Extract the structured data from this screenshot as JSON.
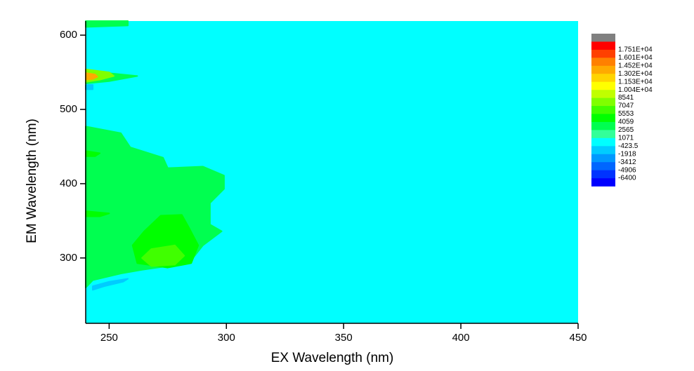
{
  "chart_data": {
    "type": "contour",
    "x_label": "EX Wavelength (nm)",
    "y_label": "EM Wavelength (nm)",
    "xlim": [
      240,
      450
    ],
    "xticks": [
      250,
      300,
      350,
      400,
      450
    ],
    "ylim": [
      212,
      619
    ],
    "yticks": [
      300,
      400,
      500,
      600
    ],
    "levels": [
      {
        "value": 17510,
        "label": "1.751E+04"
      },
      {
        "value": 16010,
        "label": "1.601E+04"
      },
      {
        "value": 14520,
        "label": "1.452E+04"
      },
      {
        "value": 13020,
        "label": "1.302E+04"
      },
      {
        "value": 11530,
        "label": "1.153E+04"
      },
      {
        "value": 10040,
        "label": "1.004E+04"
      },
      8541,
      7047,
      5553,
      4059,
      2565,
      1071,
      -423.5,
      -1918,
      -3412,
      -4906,
      -6400
    ],
    "colors": [
      "#808080",
      "#ff0000",
      "#ff4000",
      "#ff8000",
      "#ffaa00",
      "#ffd400",
      "#ffff00",
      "#c0ff00",
      "#80ff00",
      "#40ff00",
      "#00ff00",
      "#00ff50",
      "#33ff99",
      "#00ffff",
      "#00ccff",
      "#0099ff",
      "#0066ff",
      "#0033ff",
      "#0000ff"
    ],
    "background": 500,
    "regions": [
      {
        "z": 3000,
        "ex": [
          240,
          255,
          259,
          273,
          275,
          290,
          299,
          299,
          293,
          293,
          298,
          290,
          284,
          275,
          264,
          255,
          243,
          240
        ],
        "em": [
          477,
          468,
          449,
          435,
          421,
          423,
          411,
          393,
          374,
          345,
          336,
          317,
          293,
          289,
          284,
          279,
          270,
          260
        ]
      },
      {
        "z": 4500,
        "ex": [
          272,
          281,
          284,
          288,
          285,
          275,
          262,
          260,
          265
        ],
        "em": [
          357,
          358,
          341,
          317,
          293,
          287,
          293,
          317,
          336
        ]
      },
      {
        "z": 6000,
        "ex": [
          268,
          278,
          282,
          278,
          268,
          264
        ],
        "em": [
          312,
          317,
          303,
          291,
          289,
          300
        ]
      },
      {
        "z": 3000,
        "ex": [
          240,
          262,
          250,
          240
        ],
        "em": [
          552,
          545,
          538,
          535
        ]
      },
      {
        "z": 8000,
        "ex": [
          240,
          250,
          252,
          246,
          240
        ],
        "em": [
          554,
          550,
          545,
          540,
          537
        ]
      },
      {
        "z": 14000,
        "ex": [
          240,
          244,
          245,
          243,
          240
        ],
        "em": [
          549,
          547,
          544,
          541,
          540
        ]
      },
      {
        "z": -1500,
        "ex": [
          240,
          243,
          243,
          240
        ],
        "em": [
          533,
          533,
          527,
          527
        ]
      },
      {
        "z": -1000,
        "ex": [
          243,
          250,
          258,
          256,
          248,
          243
        ],
        "em": [
          262,
          268,
          272,
          268,
          262,
          257
        ]
      },
      {
        "z": 3000,
        "ex": [
          240,
          258,
          258,
          240
        ],
        "em": [
          619,
          619,
          613,
          611
        ]
      },
      {
        "z": 5000,
        "ex": [
          240,
          246,
          244,
          240
        ],
        "em": [
          444,
          441,
          437,
          437
        ]
      },
      {
        "z": 4500,
        "ex": [
          240,
          250,
          246,
          240
        ],
        "em": [
          363,
          360,
          356,
          356
        ]
      }
    ]
  }
}
